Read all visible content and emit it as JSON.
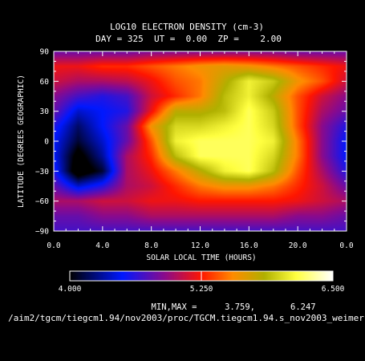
{
  "chart_data": {
    "type": "heatmap",
    "title": "LOG10 ELECTRON DENSITY (cm-3)",
    "subtitle": "DAY = 325  UT =  0.00  ZP =    2.00",
    "xlabel": "SOLAR LOCAL TIME (HOURS)",
    "ylabel": "LATITUDE (DEGREES GEOGRAPHIC)",
    "xlim": [
      0,
      24
    ],
    "ylim": [
      -90,
      90
    ],
    "x_tick_labels": [
      "0.0",
      "4.0",
      "8.0",
      "12.0",
      "16.0",
      "20.0",
      "0.0"
    ],
    "y_tick_labels": [
      "90",
      "60",
      "30",
      "0",
      "−30",
      "−60",
      "−90"
    ],
    "x": [
      0,
      2,
      4,
      6,
      8,
      10,
      12,
      14,
      16,
      18,
      20,
      22,
      24
    ],
    "y": [
      90,
      75,
      60,
      45,
      30,
      15,
      0,
      -15,
      -30,
      -45,
      -60,
      -75,
      -90
    ],
    "z": [
      [
        4.8,
        4.8,
        4.8,
        4.8,
        4.85,
        4.85,
        4.85,
        4.85,
        4.85,
        4.85,
        4.8,
        4.8,
        4.8
      ],
      [
        5.2,
        5.2,
        5.3,
        5.3,
        5.4,
        5.5,
        5.6,
        5.65,
        5.6,
        5.5,
        5.4,
        5.3,
        5.2
      ],
      [
        5.1,
        5.0,
        5.0,
        5.05,
        5.2,
        5.4,
        5.5,
        5.8,
        6.1,
        5.95,
        5.6,
        5.4,
        5.1
      ],
      [
        4.9,
        4.7,
        4.6,
        4.7,
        5.1,
        5.3,
        5.5,
        5.9,
        6.1,
        5.8,
        5.4,
        5.1,
        4.9
      ],
      [
        4.8,
        4.4,
        4.5,
        4.6,
        5.2,
        5.8,
        5.8,
        5.9,
        6.2,
        5.95,
        5.4,
        5.0,
        4.8
      ],
      [
        4.6,
        4.2,
        4.5,
        4.8,
        5.6,
        6.0,
        6.0,
        6.1,
        6.2,
        6.0,
        5.4,
        4.9,
        4.6
      ],
      [
        4.5,
        4.1,
        4.4,
        4.8,
        5.4,
        6.1,
        6.2,
        6.2,
        6.2,
        6.1,
        5.5,
        4.9,
        4.5
      ],
      [
        4.5,
        3.9,
        4.3,
        5.0,
        5.3,
        5.9,
        6.2,
        6.2,
        6.2,
        6.0,
        5.5,
        4.9,
        4.5
      ],
      [
        4.6,
        3.8,
        4.1,
        5.0,
        5.2,
        5.5,
        5.8,
        6.1,
        6.2,
        5.9,
        5.4,
        5.0,
        4.6
      ],
      [
        4.8,
        4.4,
        4.6,
        5.0,
        5.1,
        5.3,
        5.5,
        5.6,
        5.6,
        5.5,
        5.3,
        5.1,
        4.8
      ],
      [
        5.0,
        5.0,
        5.1,
        5.1,
        5.2,
        5.2,
        5.25,
        5.25,
        5.25,
        5.25,
        5.2,
        5.1,
        5.0
      ],
      [
        4.8,
        4.8,
        4.9,
        4.9,
        5.0,
        5.0,
        5.0,
        5.0,
        5.0,
        5.0,
        4.9,
        4.9,
        4.8
      ],
      [
        4.7,
        4.7,
        4.7,
        4.7,
        4.7,
        4.7,
        4.7,
        4.7,
        4.7,
        4.7,
        4.7,
        4.7,
        4.7
      ]
    ],
    "colorbar": {
      "min": 4.0,
      "max": 6.5,
      "labels": [
        "4.000",
        "5.250",
        "6.500"
      ],
      "stops": [
        {
          "v": 4.0,
          "color": "#000000"
        },
        {
          "v": 4.5,
          "color": "#0018ff"
        },
        {
          "v": 4.9,
          "color": "#8a0a8c"
        },
        {
          "v": 5.25,
          "color": "#ff1500"
        },
        {
          "v": 5.55,
          "color": "#ff8c00"
        },
        {
          "v": 5.85,
          "color": "#b0b000"
        },
        {
          "v": 6.15,
          "color": "#ffff40"
        },
        {
          "v": 6.5,
          "color": "#ffffff"
        }
      ]
    },
    "minmax_label": "MIN,MAX =",
    "min_value": "3.759,",
    "max_value": "6.247",
    "footer_path": "/aim2/tgcm/tiegcm1.94/nov2003/proc/TGCM.tiegcm1.94.s_nov2003_weimer"
  }
}
